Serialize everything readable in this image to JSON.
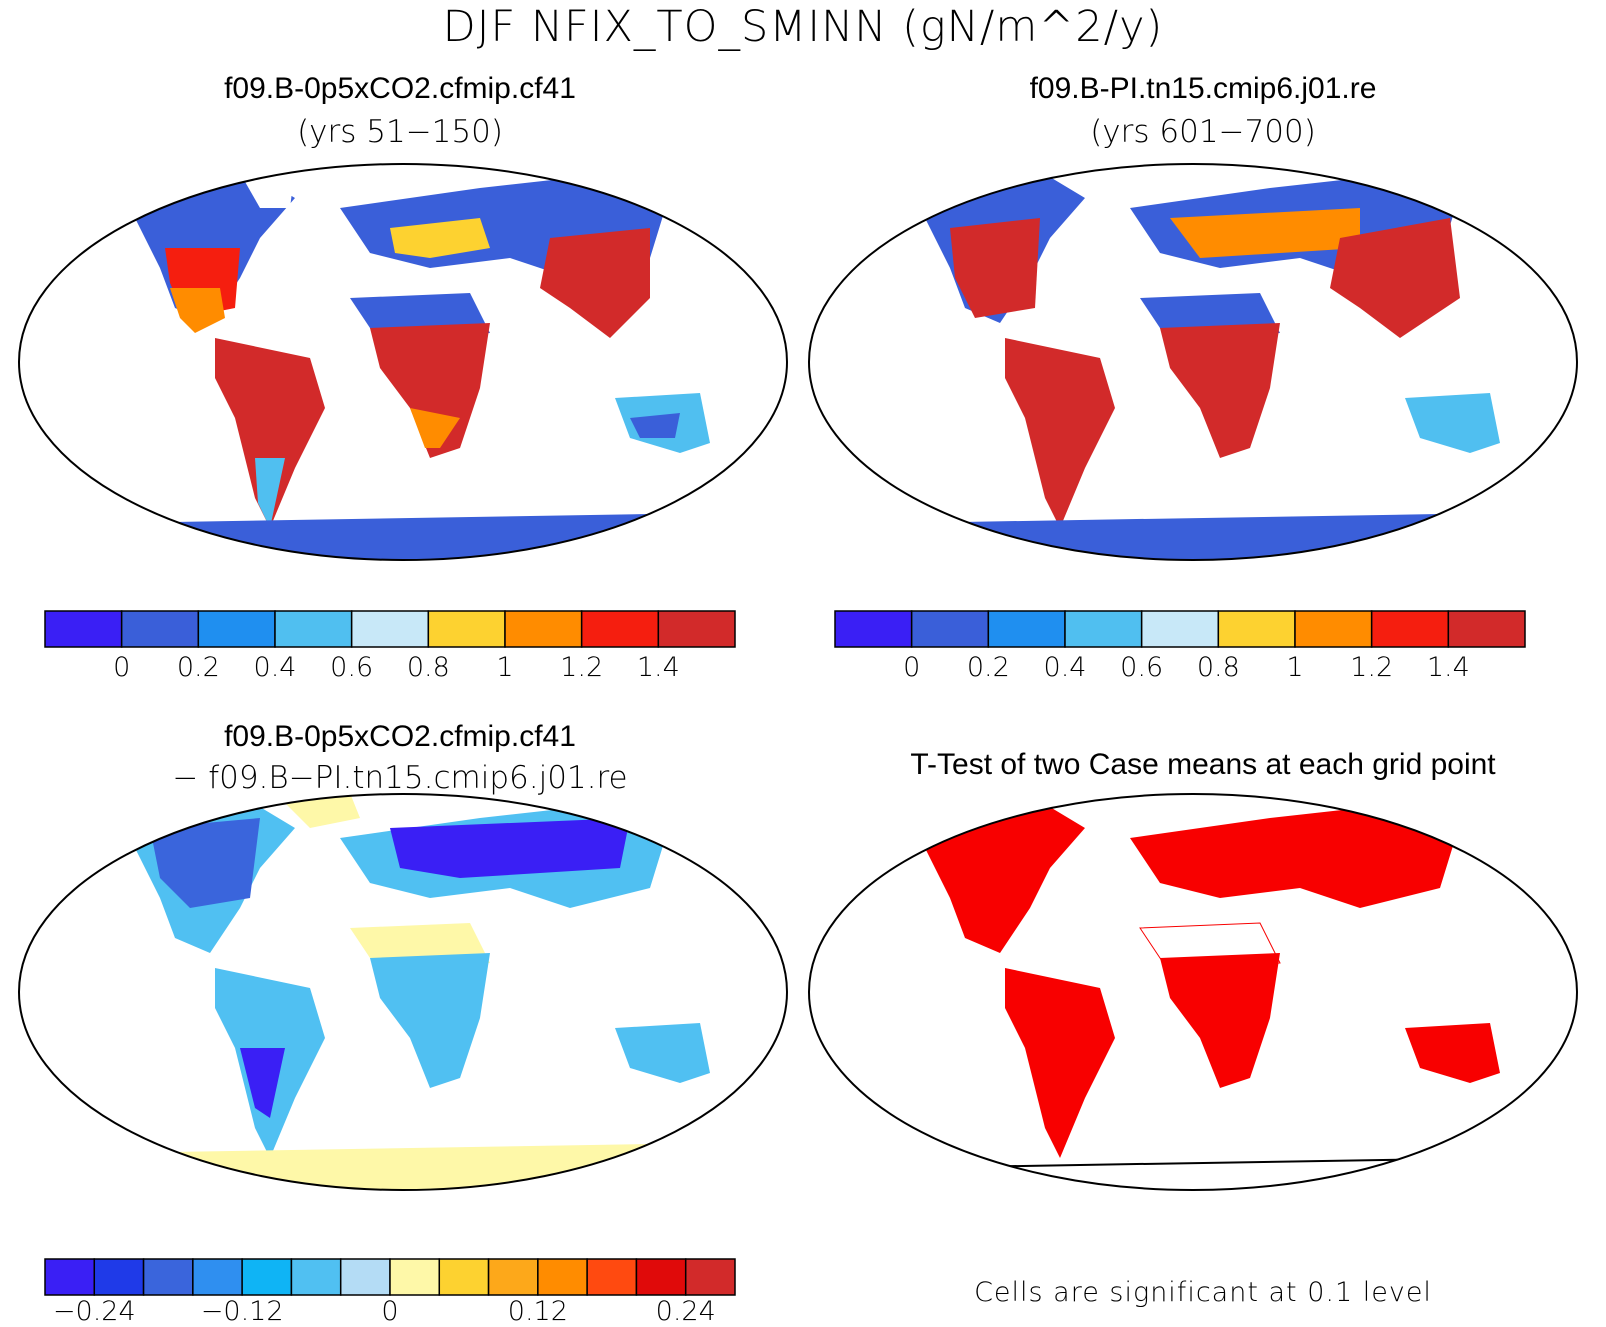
{
  "title": "DJF NFIX_TO_SMINN (gN/m^2/y)",
  "panels": [
    {
      "title": "f09.B-0p5xCO2.cfmip.cf41",
      "subtitle": "(yrs 51−150)"
    },
    {
      "title": "f09.B-PI.tn15.cmip6.j01.re",
      "subtitle": "(yrs 601−700)"
    },
    {
      "title": "f09.B-0p5xCO2.cfmip.cf41",
      "subtitle": "− f09.B−PI.tn15.cmip6.j01.re"
    },
    {
      "title": "T-Test of two Case means at each grid point",
      "subtitle": ""
    }
  ],
  "colorbars": {
    "abs": {
      "colors": [
        "#3a1ff5",
        "#3a5fd9",
        "#1f8ff0",
        "#50bff0",
        "#c8e8f8",
        "#fdd230",
        "#ff8c00",
        "#f51e0f",
        "#d22a2a"
      ],
      "ticks": [
        "0",
        "0.2",
        "0.4",
        "0.6",
        "0.8",
        "1",
        "1.2",
        "1.4"
      ]
    },
    "diff": {
      "colors": [
        "#3a1ff5",
        "#1f3ae8",
        "#3a65dc",
        "#2f8ff0",
        "#0fb4f5",
        "#50c0f2",
        "#b4dcf5",
        "#fef8a8",
        "#fdd230",
        "#fda81a",
        "#ff8c00",
        "#ff4a10",
        "#e00a0a",
        "#d22a2a"
      ],
      "ticks": [
        "−0.24",
        "−0.12",
        "0",
        "0.12",
        "0.24"
      ]
    }
  },
  "footnote": "Cells are significant at 0.1 level",
  "chart_data": [
    {
      "type": "heatmap",
      "title": "f09.B-0p5xCO2.cfmip.cf41",
      "subtitle": "(yrs 51−150)",
      "colorbar_levels": [
        0,
        0.2,
        0.4,
        0.6,
        0.8,
        1,
        1.2,
        1.4
      ]
    },
    {
      "type": "heatmap",
      "title": "f09.B-PI.tn15.cmip6.j01.re",
      "subtitle": "(yrs 601−700)",
      "colorbar_levels": [
        0,
        0.2,
        0.4,
        0.6,
        0.8,
        1,
        1.2,
        1.4
      ]
    },
    {
      "type": "heatmap",
      "title": "f09.B-0p5xCO2.cfmip.cf41 − f09.B−PI.tn15.cmip6.j01.re",
      "colorbar_levels": [
        -0.28,
        -0.24,
        -0.2,
        -0.16,
        -0.12,
        -0.08,
        -0.04,
        0,
        0.04,
        0.08,
        0.12,
        0.16,
        0.2,
        0.24
      ]
    },
    {
      "type": "heatmap",
      "title": "T-Test of two Case means at each grid point",
      "annotation": "Cells are significant at 0.1 level"
    }
  ]
}
